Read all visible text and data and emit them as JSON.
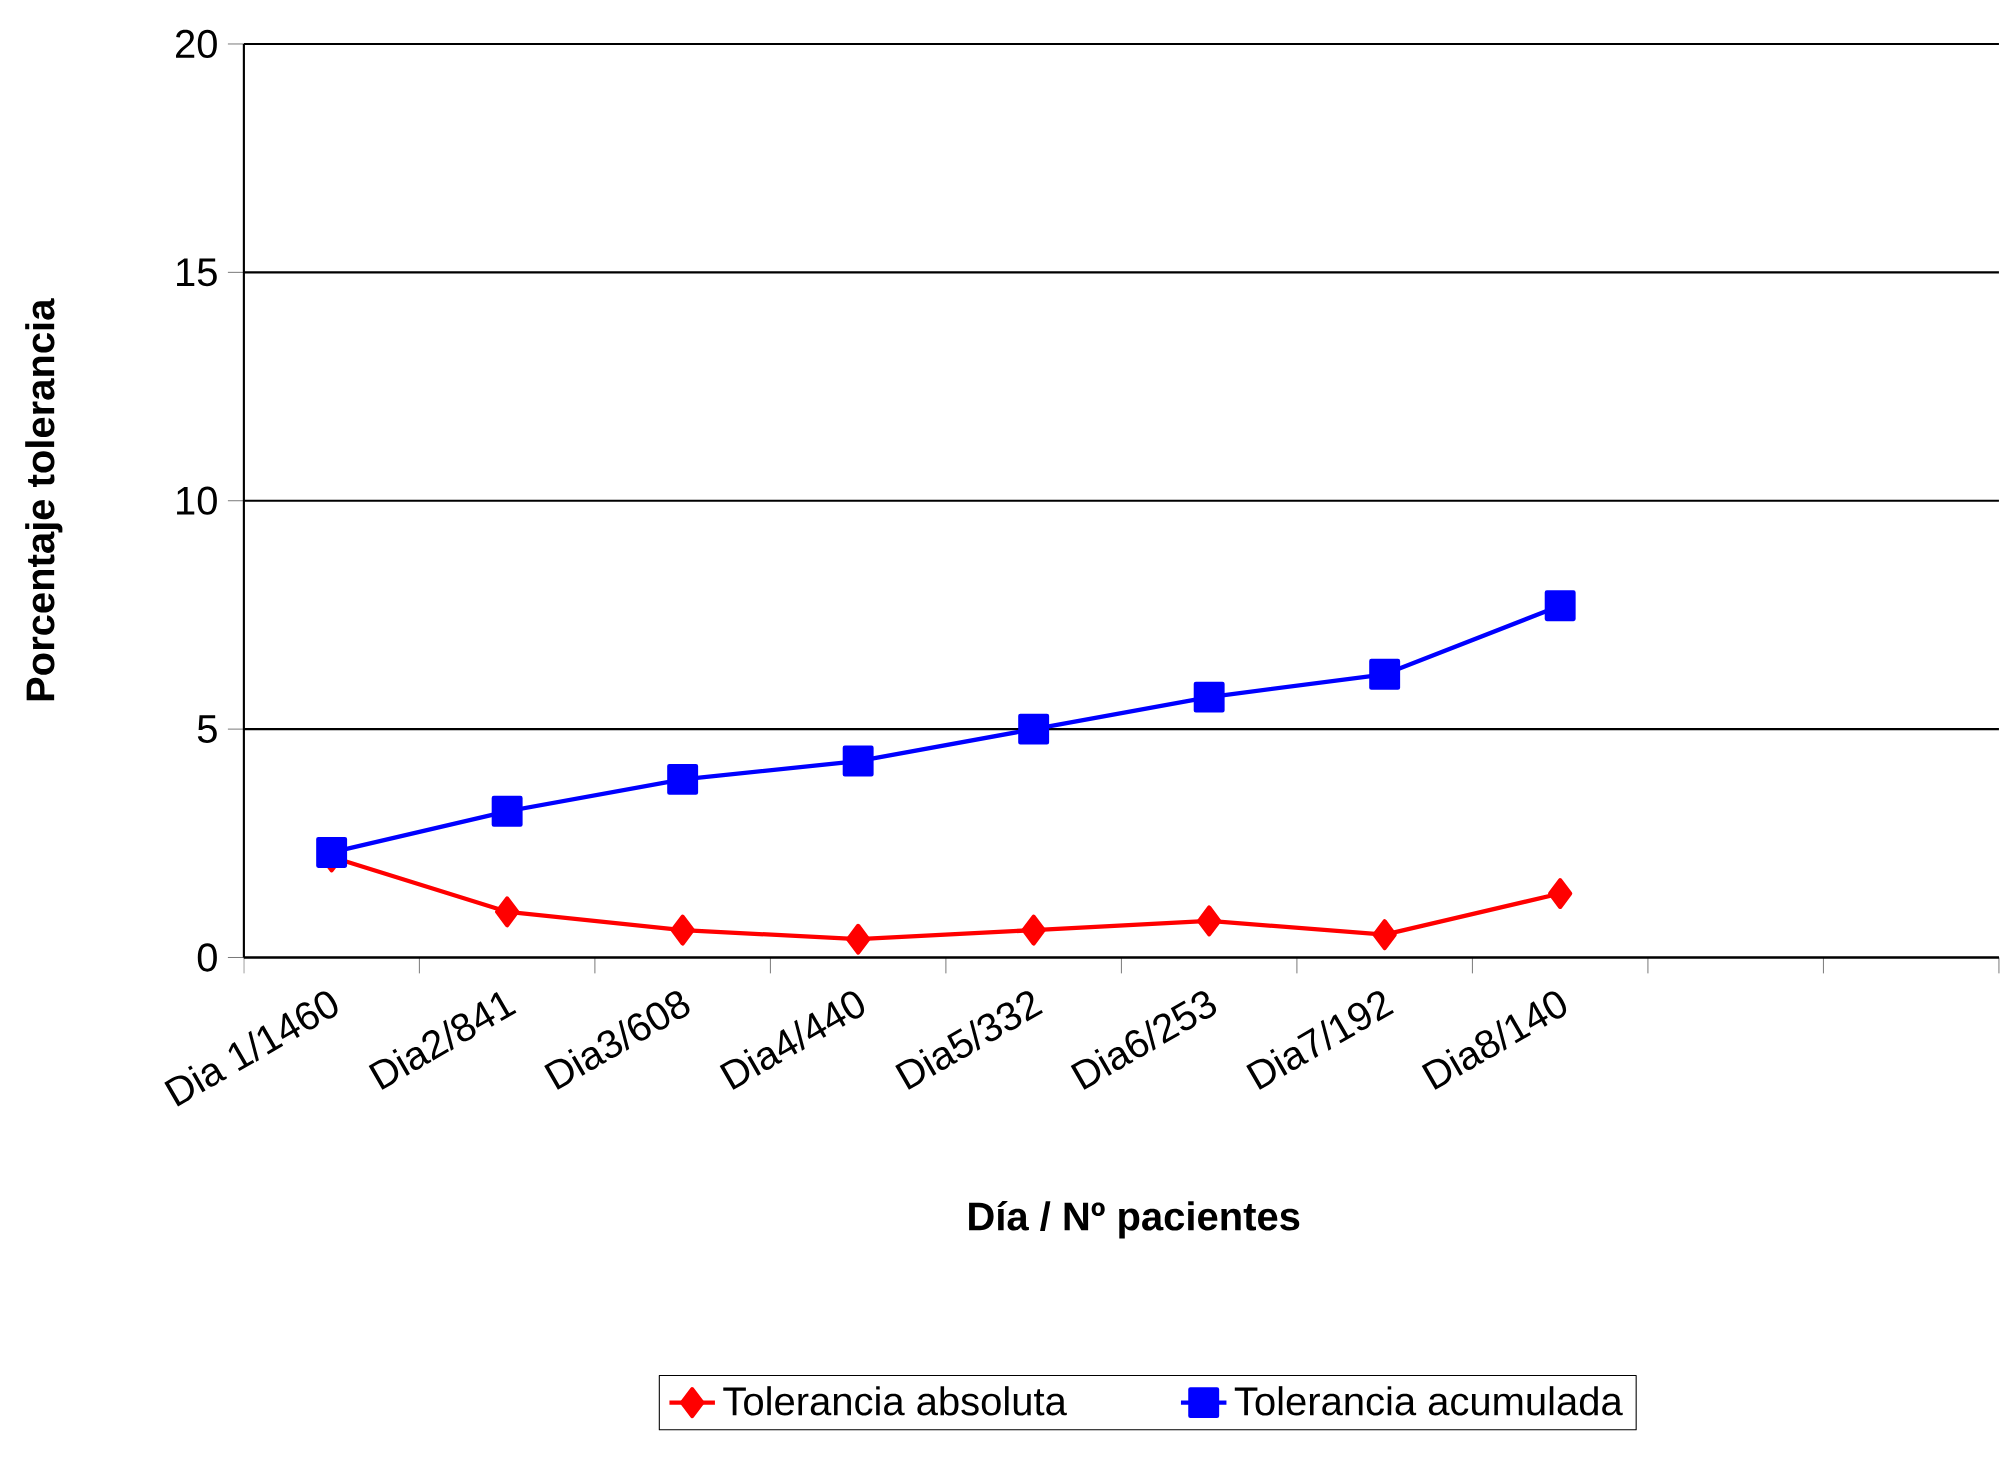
{
  "chart_data": {
    "type": "line",
    "xlabel": "Día / Nº pacientes",
    "ylabel": "Porcentaje tolerancia",
    "categories": [
      "Dia 1/1460",
      "Dia2/841",
      "Dia3/608",
      "Dia4/440",
      "Dia5/332",
      "Dia6/253",
      "Dia7/192",
      "Dia8/140",
      null,
      null
    ],
    "series": [
      {
        "name": "Tolerancia absoluta",
        "color": "#ff0000",
        "marker": "diamond",
        "values": [
          2.2,
          1.0,
          0.6,
          0.4,
          0.6,
          0.8,
          0.5,
          1.4,
          null,
          null
        ]
      },
      {
        "name": "Tolerancia acumulada",
        "color": "#0000ff",
        "marker": "square",
        "values": [
          2.3,
          3.2,
          3.9,
          4.3,
          5.0,
          5.7,
          6.2,
          7.7,
          null,
          null
        ]
      }
    ],
    "ylim": [
      0,
      20
    ],
    "yticks": [
      0,
      5,
      10,
      15,
      20
    ],
    "grid": "y",
    "legend": "bottom",
    "line_style": "solid"
  }
}
